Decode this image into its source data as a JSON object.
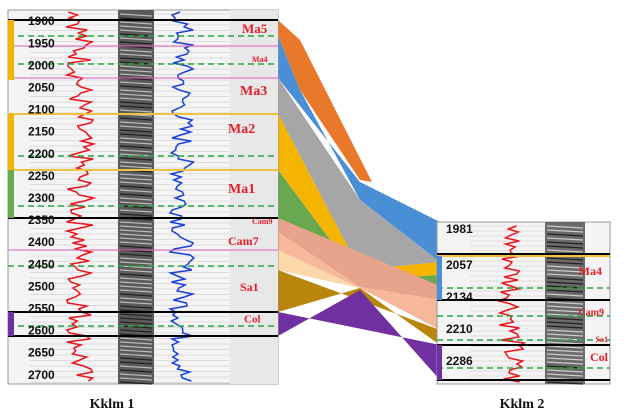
{
  "wells": [
    {
      "name": "Kklm 1",
      "depths": [
        1900,
        1950,
        2000,
        2050,
        2100,
        2150,
        2200,
        2250,
        2300,
        2350,
        2400,
        2450,
        2500,
        2550,
        2600,
        2650,
        2700
      ],
      "zones": [
        "Ma5",
        "Ma4",
        "Ma3",
        "Ma2",
        "Ma1",
        "Cam9",
        "Cam7",
        "Sa1",
        "Col"
      ]
    },
    {
      "name": "Kklm 2",
      "depths": [
        1981,
        2057,
        2134,
        2210,
        2286
      ],
      "zones": [
        "Ma4",
        "Cam9",
        "Sa1",
        "Col"
      ]
    }
  ]
}
